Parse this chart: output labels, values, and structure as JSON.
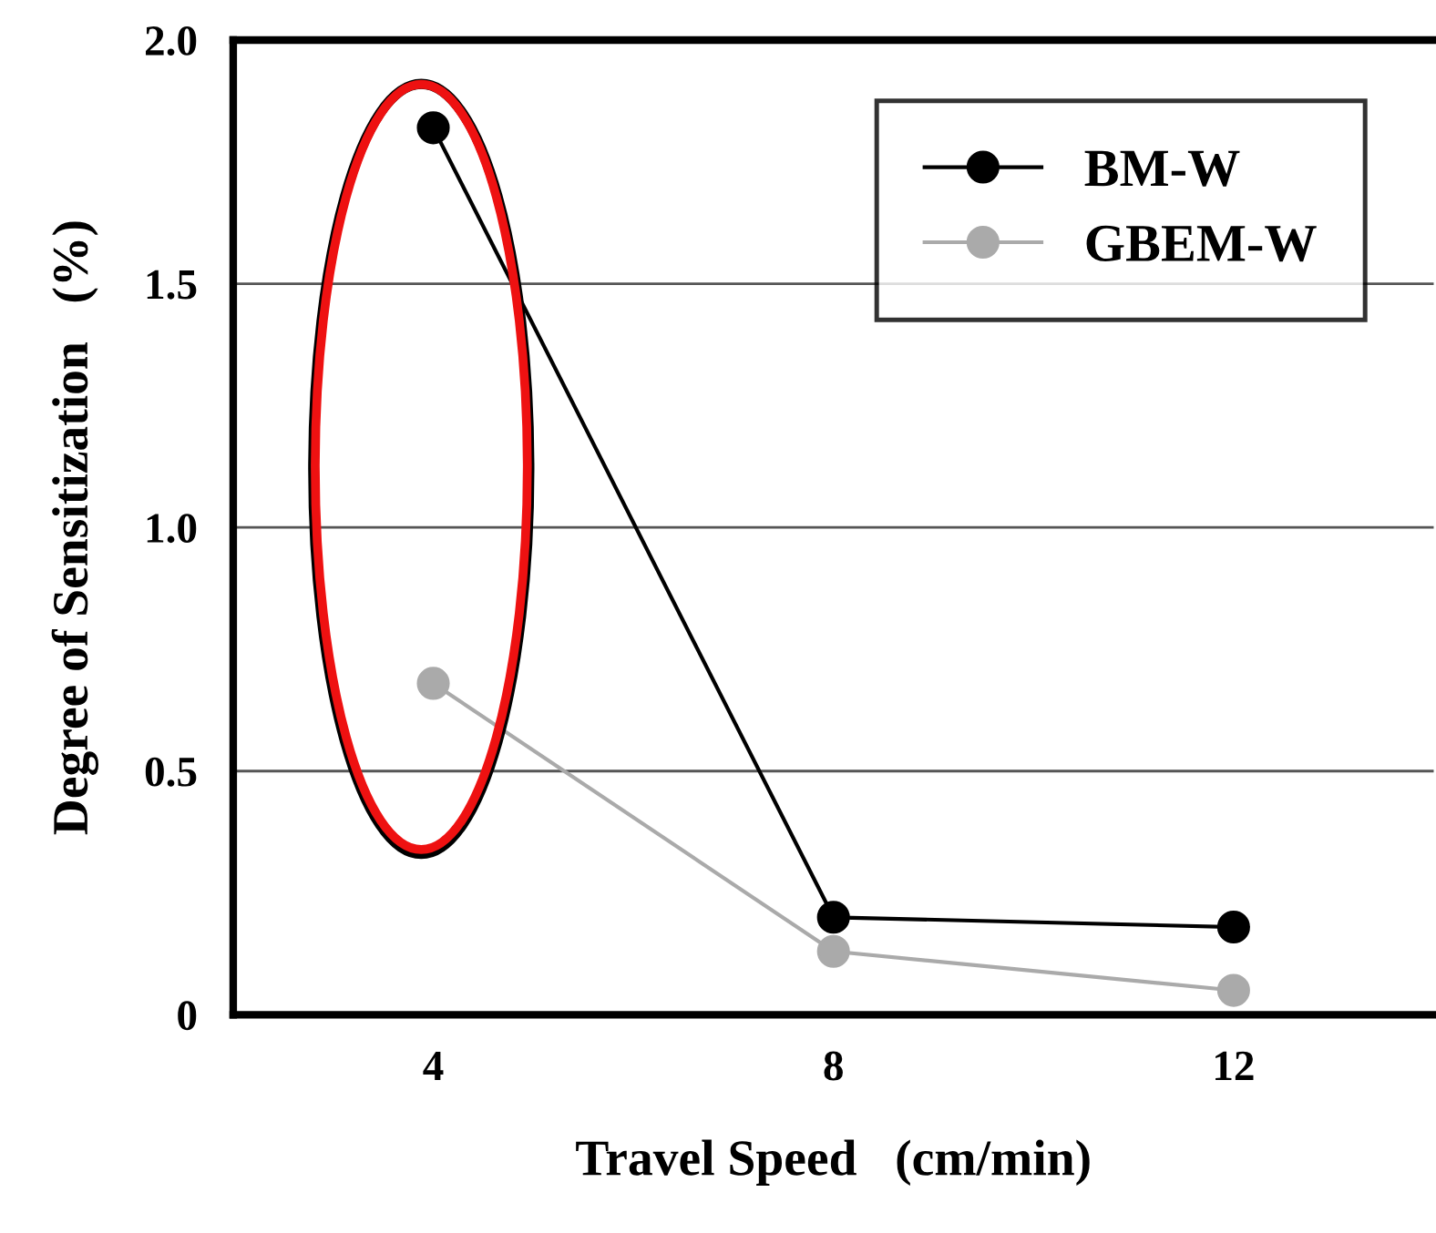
{
  "chart_data": {
    "type": "line",
    "xlabel": "Travel Speed   (cm/min)",
    "ylabel": "Degree of Sensitization   (%)",
    "categories": [
      "4",
      "8",
      "12"
    ],
    "series": [
      {
        "name": "BM-W",
        "color": "#000000",
        "values": [
          1.82,
          0.2,
          0.18
        ]
      },
      {
        "name": "GBEM-W",
        "color": "#aaaaaa",
        "values": [
          0.68,
          0.13,
          0.05
        ]
      }
    ],
    "ylim": [
      0,
      2.0
    ],
    "yticks": [
      0,
      0.5,
      {
        "value": 1.0,
        "label": "1.0"
      },
      1.5,
      {
        "value": 2.0,
        "label": "2.0"
      }
    ],
    "grid": "y",
    "legend": "top right",
    "marker": "circle",
    "line_style": "solid"
  }
}
